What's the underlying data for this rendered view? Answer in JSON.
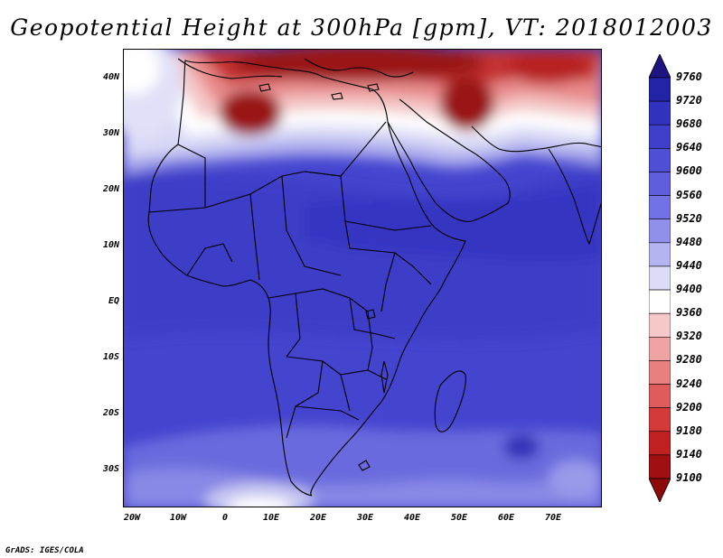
{
  "title": "Geopotential Height at 300hPa [gpm], VT: 2018012003",
  "credit": "GrADS: IGES/COLA",
  "axes": {
    "lon_labels": [
      "20W",
      "10W",
      "0",
      "10E",
      "20E",
      "30E",
      "40E",
      "50E",
      "60E",
      "70E"
    ],
    "lat_labels": [
      "40N",
      "30N",
      "20N",
      "10N",
      "EQ",
      "10S",
      "20S",
      "30S"
    ]
  },
  "colorbar": {
    "levels": [
      "9760",
      "9720",
      "9680",
      "9640",
      "9600",
      "9560",
      "9520",
      "9480",
      "9440",
      "9400",
      "9360",
      "9320",
      "9280",
      "9240",
      "9200",
      "9180",
      "9140",
      "9100"
    ],
    "colors": [
      "#1c1480",
      "#2323a8",
      "#3232c0",
      "#3f3fcc",
      "#4e4ed6",
      "#5f5fde",
      "#7272e6",
      "#9090ec",
      "#b4b4f2",
      "#dcdcf8",
      "#ffffff",
      "#f7c8c8",
      "#f0a3a3",
      "#e88080",
      "#e05c5c",
      "#d43a3a",
      "#c02020",
      "#a01010",
      "#8c0a0a"
    ]
  },
  "map_layers": {
    "fill_colors": {
      "deep_red": "#9a1212",
      "red": "#c43030",
      "light_red": "#e88a8a",
      "pink": "#f4c6c6",
      "white": "#ffffff",
      "pale_blue": "#d8d8f6",
      "light_blue": "#a7a7ec",
      "mid_blue": "#6a6ae0",
      "blue": "#4a4ad2",
      "dark_blue": "#3a3ac8"
    }
  }
}
